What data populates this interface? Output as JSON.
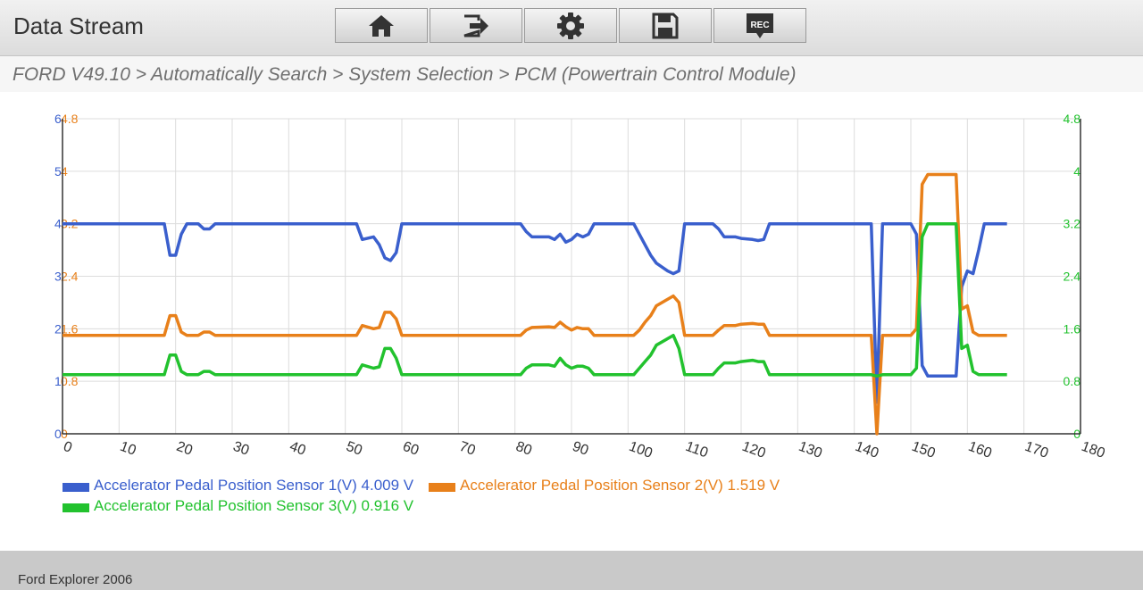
{
  "header": {
    "title": "Data Stream",
    "toolbar": [
      {
        "icon": "home-icon"
      },
      {
        "icon": "exit-icon"
      },
      {
        "icon": "gear-icon"
      },
      {
        "icon": "save-icon"
      },
      {
        "icon": "record-icon",
        "text": "REC"
      }
    ]
  },
  "breadcrumb": "FORD V49.10 > Automatically Search > System Selection > PCM (Powertrain Control Module)",
  "chart_data": {
    "type": "line",
    "xlim": [
      0,
      180
    ],
    "x_ticks": [
      "0",
      "10",
      "20",
      "30",
      "40",
      "50",
      "60",
      "70",
      "80",
      "90",
      "100",
      "110",
      "120",
      "130",
      "140",
      "150",
      "160",
      "170",
      "180"
    ],
    "y_left_blue_ticks": [
      "6",
      "5",
      "4",
      "3",
      "2",
      "1",
      "0"
    ],
    "y_left_orange_ticks": [
      "4.8",
      "4",
      "3.2",
      "2.4",
      "1.6",
      "0.8",
      "0"
    ],
    "y_right_green_ticks": [
      "4.8",
      "4",
      "3.2",
      "2.4",
      "1.6",
      "0.8",
      "0"
    ],
    "grid": true,
    "series": [
      {
        "name": "Accelerator Pedal Position Sensor 1(V)",
        "value_text": "4.009 V",
        "color": "#3a5fcd",
        "scale": "blue",
        "ymax": 6,
        "points": [
          [
            0,
            4.0
          ],
          [
            18,
            4.0
          ],
          [
            19,
            3.4
          ],
          [
            20,
            3.4
          ],
          [
            21,
            3.8
          ],
          [
            22,
            4.0
          ],
          [
            24,
            4.0
          ],
          [
            25,
            3.9
          ],
          [
            26,
            3.9
          ],
          [
            27,
            4.0
          ],
          [
            52,
            4.0
          ],
          [
            53,
            3.7
          ],
          [
            55,
            3.75
          ],
          [
            56,
            3.6
          ],
          [
            57,
            3.35
          ],
          [
            58,
            3.3
          ],
          [
            59,
            3.45
          ],
          [
            60,
            4.0
          ],
          [
            81,
            4.0
          ],
          [
            82,
            3.85
          ],
          [
            83,
            3.75
          ],
          [
            86,
            3.75
          ],
          [
            87,
            3.7
          ],
          [
            88,
            3.8
          ],
          [
            89,
            3.65
          ],
          [
            90,
            3.7
          ],
          [
            91,
            3.8
          ],
          [
            92,
            3.75
          ],
          [
            93,
            3.8
          ],
          [
            94,
            4.0
          ],
          [
            101,
            4.0
          ],
          [
            102,
            3.8
          ],
          [
            103,
            3.6
          ],
          [
            104,
            3.4
          ],
          [
            105,
            3.25
          ],
          [
            107,
            3.1
          ],
          [
            108,
            3.05
          ],
          [
            109,
            3.1
          ],
          [
            110,
            4.0
          ],
          [
            115,
            4.0
          ],
          [
            116,
            3.9
          ],
          [
            117,
            3.75
          ],
          [
            119,
            3.75
          ],
          [
            120,
            3.72
          ],
          [
            122,
            3.7
          ],
          [
            123,
            3.68
          ],
          [
            124,
            3.7
          ],
          [
            125,
            4.0
          ],
          [
            143,
            4.0
          ],
          [
            144,
            0.6
          ],
          [
            145,
            4.0
          ],
          [
            150,
            4.0
          ],
          [
            151,
            3.8
          ],
          [
            152,
            1.3
          ],
          [
            153,
            1.1
          ],
          [
            157,
            1.1
          ],
          [
            158,
            1.1
          ],
          [
            159,
            2.8
          ],
          [
            160,
            3.1
          ],
          [
            161,
            3.05
          ],
          [
            162,
            3.5
          ],
          [
            163,
            4.0
          ],
          [
            167,
            4.0
          ]
        ]
      },
      {
        "name": "Accelerator Pedal Position Sensor 2(V)",
        "value_text": "1.519 V",
        "color": "#e8801a",
        "scale": "orange",
        "ymax": 4.8,
        "points": [
          [
            0,
            1.5
          ],
          [
            18,
            1.5
          ],
          [
            19,
            1.8
          ],
          [
            20,
            1.8
          ],
          [
            21,
            1.55
          ],
          [
            22,
            1.5
          ],
          [
            24,
            1.5
          ],
          [
            25,
            1.55
          ],
          [
            26,
            1.55
          ],
          [
            27,
            1.5
          ],
          [
            52,
            1.5
          ],
          [
            53,
            1.65
          ],
          [
            55,
            1.6
          ],
          [
            56,
            1.62
          ],
          [
            57,
            1.85
          ],
          [
            58,
            1.85
          ],
          [
            59,
            1.75
          ],
          [
            60,
            1.5
          ],
          [
            81,
            1.5
          ],
          [
            82,
            1.58
          ],
          [
            83,
            1.62
          ],
          [
            86,
            1.63
          ],
          [
            87,
            1.62
          ],
          [
            88,
            1.7
          ],
          [
            89,
            1.63
          ],
          [
            90,
            1.58
          ],
          [
            91,
            1.62
          ],
          [
            92,
            1.6
          ],
          [
            93,
            1.6
          ],
          [
            94,
            1.5
          ],
          [
            101,
            1.5
          ],
          [
            102,
            1.58
          ],
          [
            103,
            1.7
          ],
          [
            104,
            1.8
          ],
          [
            105,
            1.95
          ],
          [
            107,
            2.05
          ],
          [
            108,
            2.1
          ],
          [
            109,
            2.0
          ],
          [
            110,
            1.5
          ],
          [
            115,
            1.5
          ],
          [
            116,
            1.58
          ],
          [
            117,
            1.65
          ],
          [
            119,
            1.65
          ],
          [
            120,
            1.67
          ],
          [
            122,
            1.68
          ],
          [
            123,
            1.67
          ],
          [
            124,
            1.67
          ],
          [
            125,
            1.5
          ],
          [
            143,
            1.5
          ],
          [
            144,
            0.0
          ],
          [
            145,
            1.5
          ],
          [
            150,
            1.5
          ],
          [
            151,
            1.6
          ],
          [
            152,
            3.8
          ],
          [
            153,
            3.95
          ],
          [
            157,
            3.95
          ],
          [
            158,
            3.95
          ],
          [
            159,
            1.9
          ],
          [
            160,
            1.95
          ],
          [
            161,
            1.55
          ],
          [
            162,
            1.5
          ],
          [
            163,
            1.5
          ],
          [
            167,
            1.5
          ]
        ]
      },
      {
        "name": "Accelerator Pedal Position Sensor 3(V)",
        "value_text": "0.916 V",
        "color": "#22c22e",
        "scale": "green",
        "ymax": 4.8,
        "points": [
          [
            0,
            0.9
          ],
          [
            18,
            0.9
          ],
          [
            19,
            1.2
          ],
          [
            20,
            1.2
          ],
          [
            21,
            0.95
          ],
          [
            22,
            0.9
          ],
          [
            24,
            0.9
          ],
          [
            25,
            0.95
          ],
          [
            26,
            0.95
          ],
          [
            27,
            0.9
          ],
          [
            52,
            0.9
          ],
          [
            53,
            1.05
          ],
          [
            55,
            1.0
          ],
          [
            56,
            1.02
          ],
          [
            57,
            1.3
          ],
          [
            58,
            1.3
          ],
          [
            59,
            1.15
          ],
          [
            60,
            0.9
          ],
          [
            81,
            0.9
          ],
          [
            82,
            1.0
          ],
          [
            83,
            1.05
          ],
          [
            86,
            1.05
          ],
          [
            87,
            1.03
          ],
          [
            88,
            1.15
          ],
          [
            89,
            1.05
          ],
          [
            90,
            1.0
          ],
          [
            91,
            1.03
          ],
          [
            92,
            1.03
          ],
          [
            93,
            1.0
          ],
          [
            94,
            0.9
          ],
          [
            101,
            0.9
          ],
          [
            102,
            1.0
          ],
          [
            103,
            1.1
          ],
          [
            104,
            1.2
          ],
          [
            105,
            1.35
          ],
          [
            107,
            1.45
          ],
          [
            108,
            1.5
          ],
          [
            109,
            1.3
          ],
          [
            110,
            0.9
          ],
          [
            115,
            0.9
          ],
          [
            116,
            1.0
          ],
          [
            117,
            1.08
          ],
          [
            119,
            1.08
          ],
          [
            120,
            1.1
          ],
          [
            122,
            1.12
          ],
          [
            123,
            1.1
          ],
          [
            124,
            1.1
          ],
          [
            125,
            0.9
          ],
          [
            143,
            0.9
          ],
          [
            144,
            0.88
          ],
          [
            145,
            0.9
          ],
          [
            150,
            0.9
          ],
          [
            151,
            1.0
          ],
          [
            152,
            3.0
          ],
          [
            153,
            3.2
          ],
          [
            157,
            3.2
          ],
          [
            158,
            3.2
          ],
          [
            159,
            1.3
          ],
          [
            160,
            1.35
          ],
          [
            161,
            0.95
          ],
          [
            162,
            0.9
          ],
          [
            163,
            0.9
          ],
          [
            167,
            0.9
          ]
        ]
      }
    ]
  },
  "footer": "Ford Explorer 2006"
}
